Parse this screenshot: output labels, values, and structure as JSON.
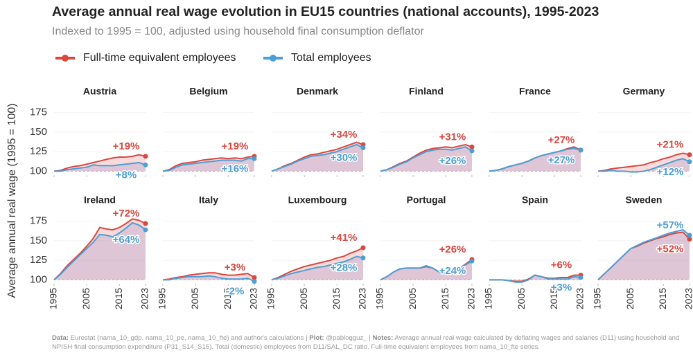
{
  "title": "Average annual real wage evolution in EU15 countries (national accounts), 1995-2023",
  "subtitle": "Indexed to 1995 = 100, adjusted using household final consumption deflator",
  "y_label": "Average annual real wage (1995 = 100)",
  "footer": [
    {
      "label": "Data:",
      "text": "Eurostat (nama_10_gdp, nama_10_pe, nama_10_fte) and author's calculations |"
    },
    {
      "label": "Plot:",
      "text": "@pablogguz_ |"
    },
    {
      "label": "Notes:",
      "text": "Average annual real wage calculated by deflating wages and salaries (D11) using household and NPISH final consumption expenditure (P31_S14_S15). Total (domestic) employees from D11/SAL_DC ratio. Full-time equivalent employees from nama_10_fte series."
    }
  ],
  "chart_data": [
    {
      "type": "line",
      "title": "Austria",
      "x": [
        1995,
        1997,
        1999,
        2001,
        2003,
        2005,
        2007,
        2009,
        2011,
        2013,
        2015,
        2017,
        2019,
        2021,
        2023
      ],
      "xlim": [
        1995,
        2023
      ],
      "xticks": [
        1995,
        2005,
        2015,
        2023
      ],
      "ylim": [
        95,
        180
      ],
      "yticks": [
        100,
        125,
        150,
        175
      ],
      "series": [
        {
          "name": "Full-time equivalent employees",
          "color": "#d9473f",
          "end_label": "+19%",
          "values": [
            100,
            101,
            104,
            106,
            107,
            109,
            111,
            113,
            115,
            117,
            118,
            118,
            119,
            121,
            119
          ]
        },
        {
          "name": "Total employees",
          "color": "#4a9fd4",
          "end_label": "+8%",
          "values": [
            100,
            100,
            102,
            103,
            104,
            105,
            108,
            107,
            107,
            107,
            108,
            109,
            110,
            111,
            108
          ]
        }
      ]
    },
    {
      "type": "line",
      "title": "Belgium",
      "x": [
        1995,
        1997,
        1999,
        2001,
        2003,
        2005,
        2007,
        2009,
        2011,
        2013,
        2015,
        2017,
        2019,
        2021,
        2023
      ],
      "xlim": [
        1995,
        2023
      ],
      "xticks": [
        1995,
        2005,
        2015,
        2023
      ],
      "ylim": [
        95,
        180
      ],
      "yticks": [
        100,
        125,
        150,
        175
      ],
      "series": [
        {
          "name": "Full-time equivalent employees",
          "color": "#d9473f",
          "end_label": "+19%",
          "values": [
            100,
            102,
            107,
            110,
            111,
            112,
            114,
            115,
            116,
            117,
            116,
            117,
            116,
            118,
            119
          ]
        },
        {
          "name": "Total employees",
          "color": "#4a9fd4",
          "end_label": "+16%",
          "values": [
            100,
            101,
            105,
            108,
            109,
            110,
            111,
            112,
            113,
            114,
            114,
            114,
            113,
            116,
            116
          ]
        }
      ]
    },
    {
      "type": "line",
      "title": "Denmark",
      "x": [
        1995,
        1997,
        1999,
        2001,
        2003,
        2005,
        2007,
        2009,
        2011,
        2013,
        2015,
        2017,
        2019,
        2021,
        2023
      ],
      "xlim": [
        1995,
        2023
      ],
      "xticks": [
        1995,
        2005,
        2015,
        2023
      ],
      "ylim": [
        95,
        180
      ],
      "yticks": [
        100,
        125,
        150,
        175
      ],
      "series": [
        {
          "name": "Full-time equivalent employees",
          "color": "#d9473f",
          "end_label": "+34%",
          "values": [
            100,
            103,
            107,
            110,
            114,
            118,
            121,
            122,
            124,
            126,
            128,
            131,
            134,
            137,
            134
          ]
        },
        {
          "name": "Total employees",
          "color": "#4a9fd4",
          "end_label": "+30%",
          "values": [
            100,
            103,
            106,
            109,
            113,
            116,
            119,
            120,
            121,
            123,
            125,
            128,
            131,
            134,
            130
          ]
        }
      ]
    },
    {
      "type": "line",
      "title": "Finland",
      "x": [
        1995,
        1997,
        1999,
        2001,
        2003,
        2005,
        2007,
        2009,
        2011,
        2013,
        2015,
        2017,
        2019,
        2021,
        2023
      ],
      "xlim": [
        1995,
        2023
      ],
      "xticks": [
        1995,
        2005,
        2015,
        2023
      ],
      "ylim": [
        95,
        180
      ],
      "yticks": [
        100,
        125,
        150,
        175
      ],
      "series": [
        {
          "name": "Full-time equivalent employees",
          "color": "#d9473f",
          "end_label": "+31%",
          "values": [
            100,
            102,
            106,
            110,
            113,
            118,
            123,
            127,
            129,
            130,
            131,
            130,
            132,
            134,
            131
          ]
        },
        {
          "name": "Total employees",
          "color": "#4a9fd4",
          "end_label": "+26%",
          "values": [
            100,
            102,
            105,
            109,
            112,
            117,
            121,
            125,
            127,
            128,
            128,
            127,
            129,
            131,
            126
          ]
        }
      ]
    },
    {
      "type": "line",
      "title": "France",
      "x": [
        1995,
        1997,
        1999,
        2001,
        2003,
        2005,
        2007,
        2009,
        2011,
        2013,
        2015,
        2017,
        2019,
        2021,
        2023
      ],
      "xlim": [
        1995,
        2023
      ],
      "xticks": [
        1995,
        2005,
        2015,
        2023
      ],
      "ylim": [
        95,
        180
      ],
      "yticks": [
        100,
        125,
        150,
        175
      ],
      "series": [
        {
          "name": "Full-time equivalent employees",
          "color": "#d9473f",
          "end_label": "+27%",
          "values": [
            100,
            101,
            103,
            106,
            108,
            110,
            113,
            117,
            120,
            122,
            124,
            126,
            129,
            131,
            127
          ]
        },
        {
          "name": "Total employees",
          "color": "#4a9fd4",
          "end_label": "+27%",
          "values": [
            100,
            101,
            103,
            106,
            108,
            110,
            113,
            117,
            120,
            122,
            124,
            126,
            128,
            129,
            127
          ]
        }
      ]
    },
    {
      "type": "line",
      "title": "Germany",
      "x": [
        1995,
        1997,
        1999,
        2001,
        2003,
        2005,
        2007,
        2009,
        2011,
        2013,
        2015,
        2017,
        2019,
        2021,
        2023
      ],
      "xlim": [
        1995,
        2023
      ],
      "xticks": [
        1995,
        2005,
        2015,
        2023
      ],
      "ylim": [
        95,
        180
      ],
      "yticks": [
        100,
        125,
        150,
        175
      ],
      "series": [
        {
          "name": "Full-time equivalent employees",
          "color": "#d9473f",
          "end_label": "+21%",
          "values": [
            100,
            101,
            103,
            104,
            105,
            106,
            107,
            108,
            111,
            113,
            116,
            118,
            121,
            123,
            121
          ]
        },
        {
          "name": "Total employees",
          "color": "#4a9fd4",
          "end_label": "+12%",
          "values": [
            100,
            100,
            101,
            100,
            100,
            99,
            99,
            100,
            102,
            105,
            108,
            111,
            114,
            116,
            112
          ]
        }
      ]
    },
    {
      "type": "line",
      "title": "Ireland",
      "x": [
        1995,
        1997,
        1999,
        2001,
        2003,
        2005,
        2007,
        2009,
        2011,
        2013,
        2015,
        2017,
        2019,
        2021,
        2023
      ],
      "xlim": [
        1995,
        2023
      ],
      "xticks": [
        1995,
        2005,
        2015,
        2023
      ],
      "ylim": [
        95,
        180
      ],
      "yticks": [
        100,
        125,
        150,
        175
      ],
      "series": [
        {
          "name": "Full-time equivalent employees",
          "color": "#d9473f",
          "end_label": "+72%",
          "values": [
            100,
            108,
            118,
            126,
            134,
            143,
            153,
            167,
            165,
            164,
            167,
            172,
            178,
            176,
            172
          ]
        },
        {
          "name": "Total employees",
          "color": "#4a9fd4",
          "end_label": "+64%",
          "values": [
            100,
            107,
            116,
            124,
            132,
            140,
            148,
            158,
            157,
            155,
            160,
            166,
            173,
            170,
            164
          ]
        }
      ]
    },
    {
      "type": "line",
      "title": "Italy",
      "x": [
        1995,
        1997,
        1999,
        2001,
        2003,
        2005,
        2007,
        2009,
        2011,
        2013,
        2015,
        2017,
        2019,
        2021,
        2023
      ],
      "xlim": [
        1995,
        2023
      ],
      "xticks": [
        1995,
        2005,
        2015,
        2023
      ],
      "ylim": [
        95,
        180
      ],
      "yticks": [
        100,
        125,
        150,
        175
      ],
      "series": [
        {
          "name": "Full-time equivalent employees",
          "color": "#d9473f",
          "end_label": "+3%",
          "values": [
            100,
            101,
            103,
            104,
            106,
            107,
            108,
            109,
            109,
            107,
            106,
            106,
            107,
            108,
            103
          ]
        },
        {
          "name": "Total employees",
          "color": "#4a9fd4",
          "end_label": "-2%",
          "values": [
            100,
            100,
            102,
            103,
            104,
            104,
            104,
            105,
            104,
            102,
            101,
            101,
            101,
            102,
            98
          ]
        }
      ]
    },
    {
      "type": "line",
      "title": "Luxembourg",
      "x": [
        1995,
        1997,
        1999,
        2001,
        2003,
        2005,
        2007,
        2009,
        2011,
        2013,
        2015,
        2017,
        2019,
        2021,
        2023
      ],
      "xlim": [
        1995,
        2023
      ],
      "xticks": [
        1995,
        2005,
        2015,
        2023
      ],
      "ylim": [
        95,
        180
      ],
      "yticks": [
        100,
        125,
        150,
        175
      ],
      "series": [
        {
          "name": "Full-time equivalent employees",
          "color": "#d9473f",
          "end_label": "+41%",
          "values": [
            100,
            103,
            107,
            111,
            114,
            117,
            119,
            121,
            123,
            125,
            128,
            130,
            134,
            137,
            141
          ]
        },
        {
          "name": "Total employees",
          "color": "#4a9fd4",
          "end_label": "+28%",
          "values": [
            100,
            102,
            105,
            108,
            110,
            112,
            114,
            116,
            117,
            119,
            121,
            123,
            126,
            130,
            128
          ]
        }
      ]
    },
    {
      "type": "line",
      "title": "Portugal",
      "x": [
        1995,
        1997,
        1999,
        2001,
        2003,
        2005,
        2007,
        2009,
        2011,
        2013,
        2015,
        2017,
        2019,
        2021,
        2023
      ],
      "xlim": [
        1995,
        2023
      ],
      "xticks": [
        1995,
        2005,
        2015,
        2023
      ],
      "ylim": [
        95,
        180
      ],
      "yticks": [
        100,
        125,
        150,
        175
      ],
      "series": [
        {
          "name": "Full-time equivalent employees",
          "color": "#d9473f",
          "end_label": "+26%",
          "values": [
            100,
            104,
            110,
            114,
            115,
            115,
            115,
            117,
            115,
            110,
            109,
            110,
            114,
            120,
            126
          ]
        },
        {
          "name": "Total employees",
          "color": "#4a9fd4",
          "end_label": "+24%",
          "values": [
            100,
            104,
            110,
            114,
            115,
            115,
            115,
            118,
            115,
            110,
            110,
            110,
            114,
            119,
            124
          ]
        }
      ]
    },
    {
      "type": "line",
      "title": "Spain",
      "x": [
        1995,
        1997,
        1999,
        2001,
        2003,
        2005,
        2007,
        2009,
        2011,
        2013,
        2015,
        2017,
        2019,
        2021,
        2023
      ],
      "xlim": [
        1995,
        2023
      ],
      "xticks": [
        1995,
        2005,
        2015,
        2023
      ],
      "ylim": [
        95,
        180
      ],
      "yticks": [
        100,
        125,
        150,
        175
      ],
      "series": [
        {
          "name": "Full-time equivalent employees",
          "color": "#d9473f",
          "end_label": "+6%",
          "values": [
            100,
            100,
            100,
            99,
            98,
            98,
            101,
            106,
            104,
            102,
            102,
            103,
            103,
            106,
            106
          ]
        },
        {
          "name": "Total employees",
          "color": "#4a9fd4",
          "end_label": "+3%",
          "values": [
            100,
            100,
            100,
            99,
            97,
            97,
            100,
            106,
            104,
            101,
            101,
            101,
            101,
            104,
            103
          ]
        }
      ]
    },
    {
      "type": "line",
      "title": "Sweden",
      "x": [
        1995,
        1997,
        1999,
        2001,
        2003,
        2005,
        2007,
        2009,
        2011,
        2013,
        2015,
        2017,
        2019,
        2021,
        2023
      ],
      "xlim": [
        1995,
        2023
      ],
      "xticks": [
        1995,
        2005,
        2015,
        2023
      ],
      "ylim": [
        95,
        180
      ],
      "yticks": [
        100,
        125,
        150,
        175
      ],
      "series": [
        {
          "name": "Full-time equivalent employees",
          "color": "#d9473f",
          "end_label": "+52%",
          "values": [
            100,
            108,
            116,
            124,
            132,
            140,
            143,
            147,
            150,
            153,
            155,
            158,
            160,
            161,
            152
          ]
        },
        {
          "name": "Total employees",
          "color": "#4a9fd4",
          "end_label": "+57%",
          "values": [
            100,
            108,
            116,
            124,
            132,
            140,
            144,
            148,
            151,
            154,
            157,
            160,
            162,
            164,
            157
          ]
        }
      ]
    }
  ]
}
